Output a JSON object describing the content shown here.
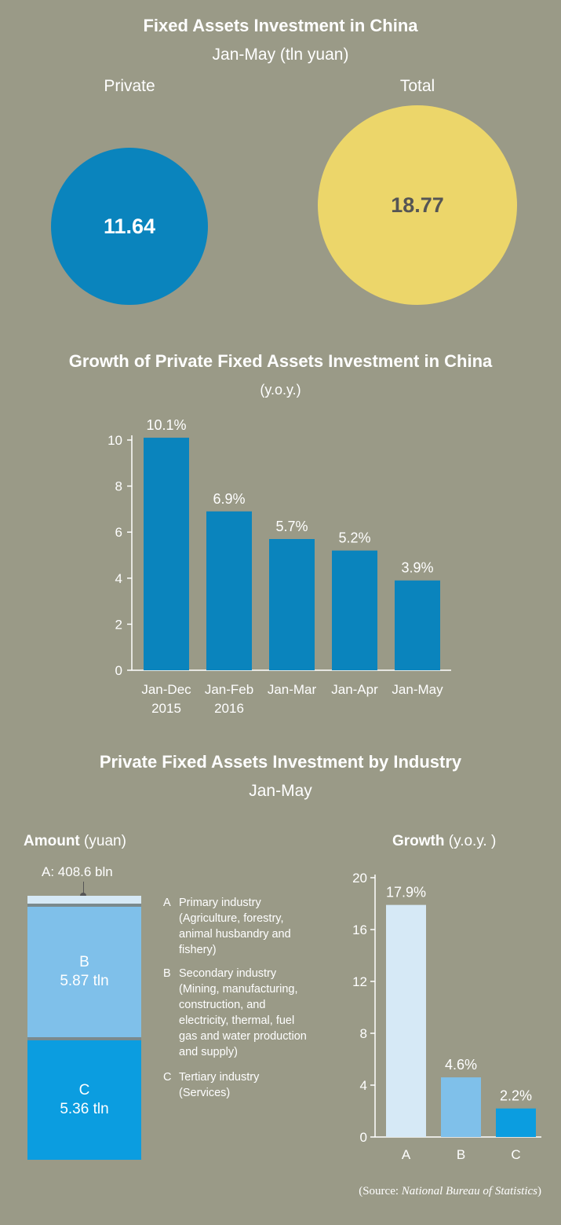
{
  "section1": {
    "title": "Fixed Assets Investment in China",
    "subtitle": "Jan-May (tln yuan)",
    "private_label": "Private",
    "private_value": "11.64",
    "total_label": "Total",
    "total_value": "18.77",
    "colors": {
      "private": "#0a84bd",
      "total": "#ecd66a",
      "total_text": "#555555"
    }
  },
  "chart_data": [
    {
      "type": "bar",
      "title": "Growth of Private Fixed Assets Investment in China",
      "subtitle": "(y.o.y.)",
      "categories": [
        [
          "Jan-Dec",
          "2015"
        ],
        [
          "Jan-Feb",
          "2016"
        ],
        [
          "Jan-Mar"
        ],
        [
          "Jan-Apr"
        ],
        [
          "Jan-May"
        ]
      ],
      "values": [
        10.1,
        6.9,
        5.7,
        5.2,
        3.9
      ],
      "value_labels": [
        "10.1%",
        "6.9%",
        "5.7%",
        "5.2%",
        "3.9%"
      ],
      "yticks": [
        "0",
        "2",
        "4",
        "6",
        "8",
        "10"
      ],
      "ylim": [
        0,
        10
      ],
      "grid": false,
      "color": "#0a84bd"
    },
    {
      "type": "bar",
      "title": "Private Fixed Assets Investment by Industry",
      "subtitle": "Jan-May",
      "panel_title": "Amount",
      "panel_unit": "(yuan)",
      "segments": [
        {
          "key": "A",
          "value": 408.6,
          "unit": "bln",
          "label": "A: 408.6 bln",
          "color": "#d6e9f6"
        },
        {
          "key": "B",
          "value": 5.87,
          "unit": "tln",
          "line1": "B",
          "line2": "5.87 tln",
          "color": "#7fc0ea"
        },
        {
          "key": "C",
          "value": 5.36,
          "unit": "tln",
          "line1": "C",
          "line2": "5.36 tln",
          "color": "#0b9de0"
        }
      ]
    },
    {
      "type": "bar",
      "panel_title": "Growth",
      "panel_unit": "(y.o.y. )",
      "categories": [
        "A",
        "B",
        "C"
      ],
      "values": [
        17.9,
        4.6,
        2.2
      ],
      "value_labels": [
        "17.9%",
        "4.6%",
        "2.2%"
      ],
      "yticks": [
        "0",
        "4",
        "8",
        "12",
        "16",
        "20"
      ],
      "ylim": [
        0,
        20
      ],
      "grid": false,
      "colors": [
        "#d6e9f6",
        "#7fc0ea",
        "#0b9de0"
      ]
    }
  ],
  "legend": [
    {
      "letter": "A",
      "lines": [
        "Primary industry",
        "(Agriculture, forestry,",
        "animal husbandry and",
        "fishery)"
      ]
    },
    {
      "letter": "B",
      "lines": [
        "Secondary industry",
        "(Mining, manufacturing,",
        "construction, and",
        "electricity, thermal, fuel",
        "gas and water production",
        "and supply)"
      ]
    },
    {
      "letter": "C",
      "lines": [
        "Tertiary industry",
        "(Services)"
      ]
    }
  ],
  "source": {
    "prefix": "(Source: ",
    "name": "National Bureau of Statistics",
    "suffix": ")"
  }
}
